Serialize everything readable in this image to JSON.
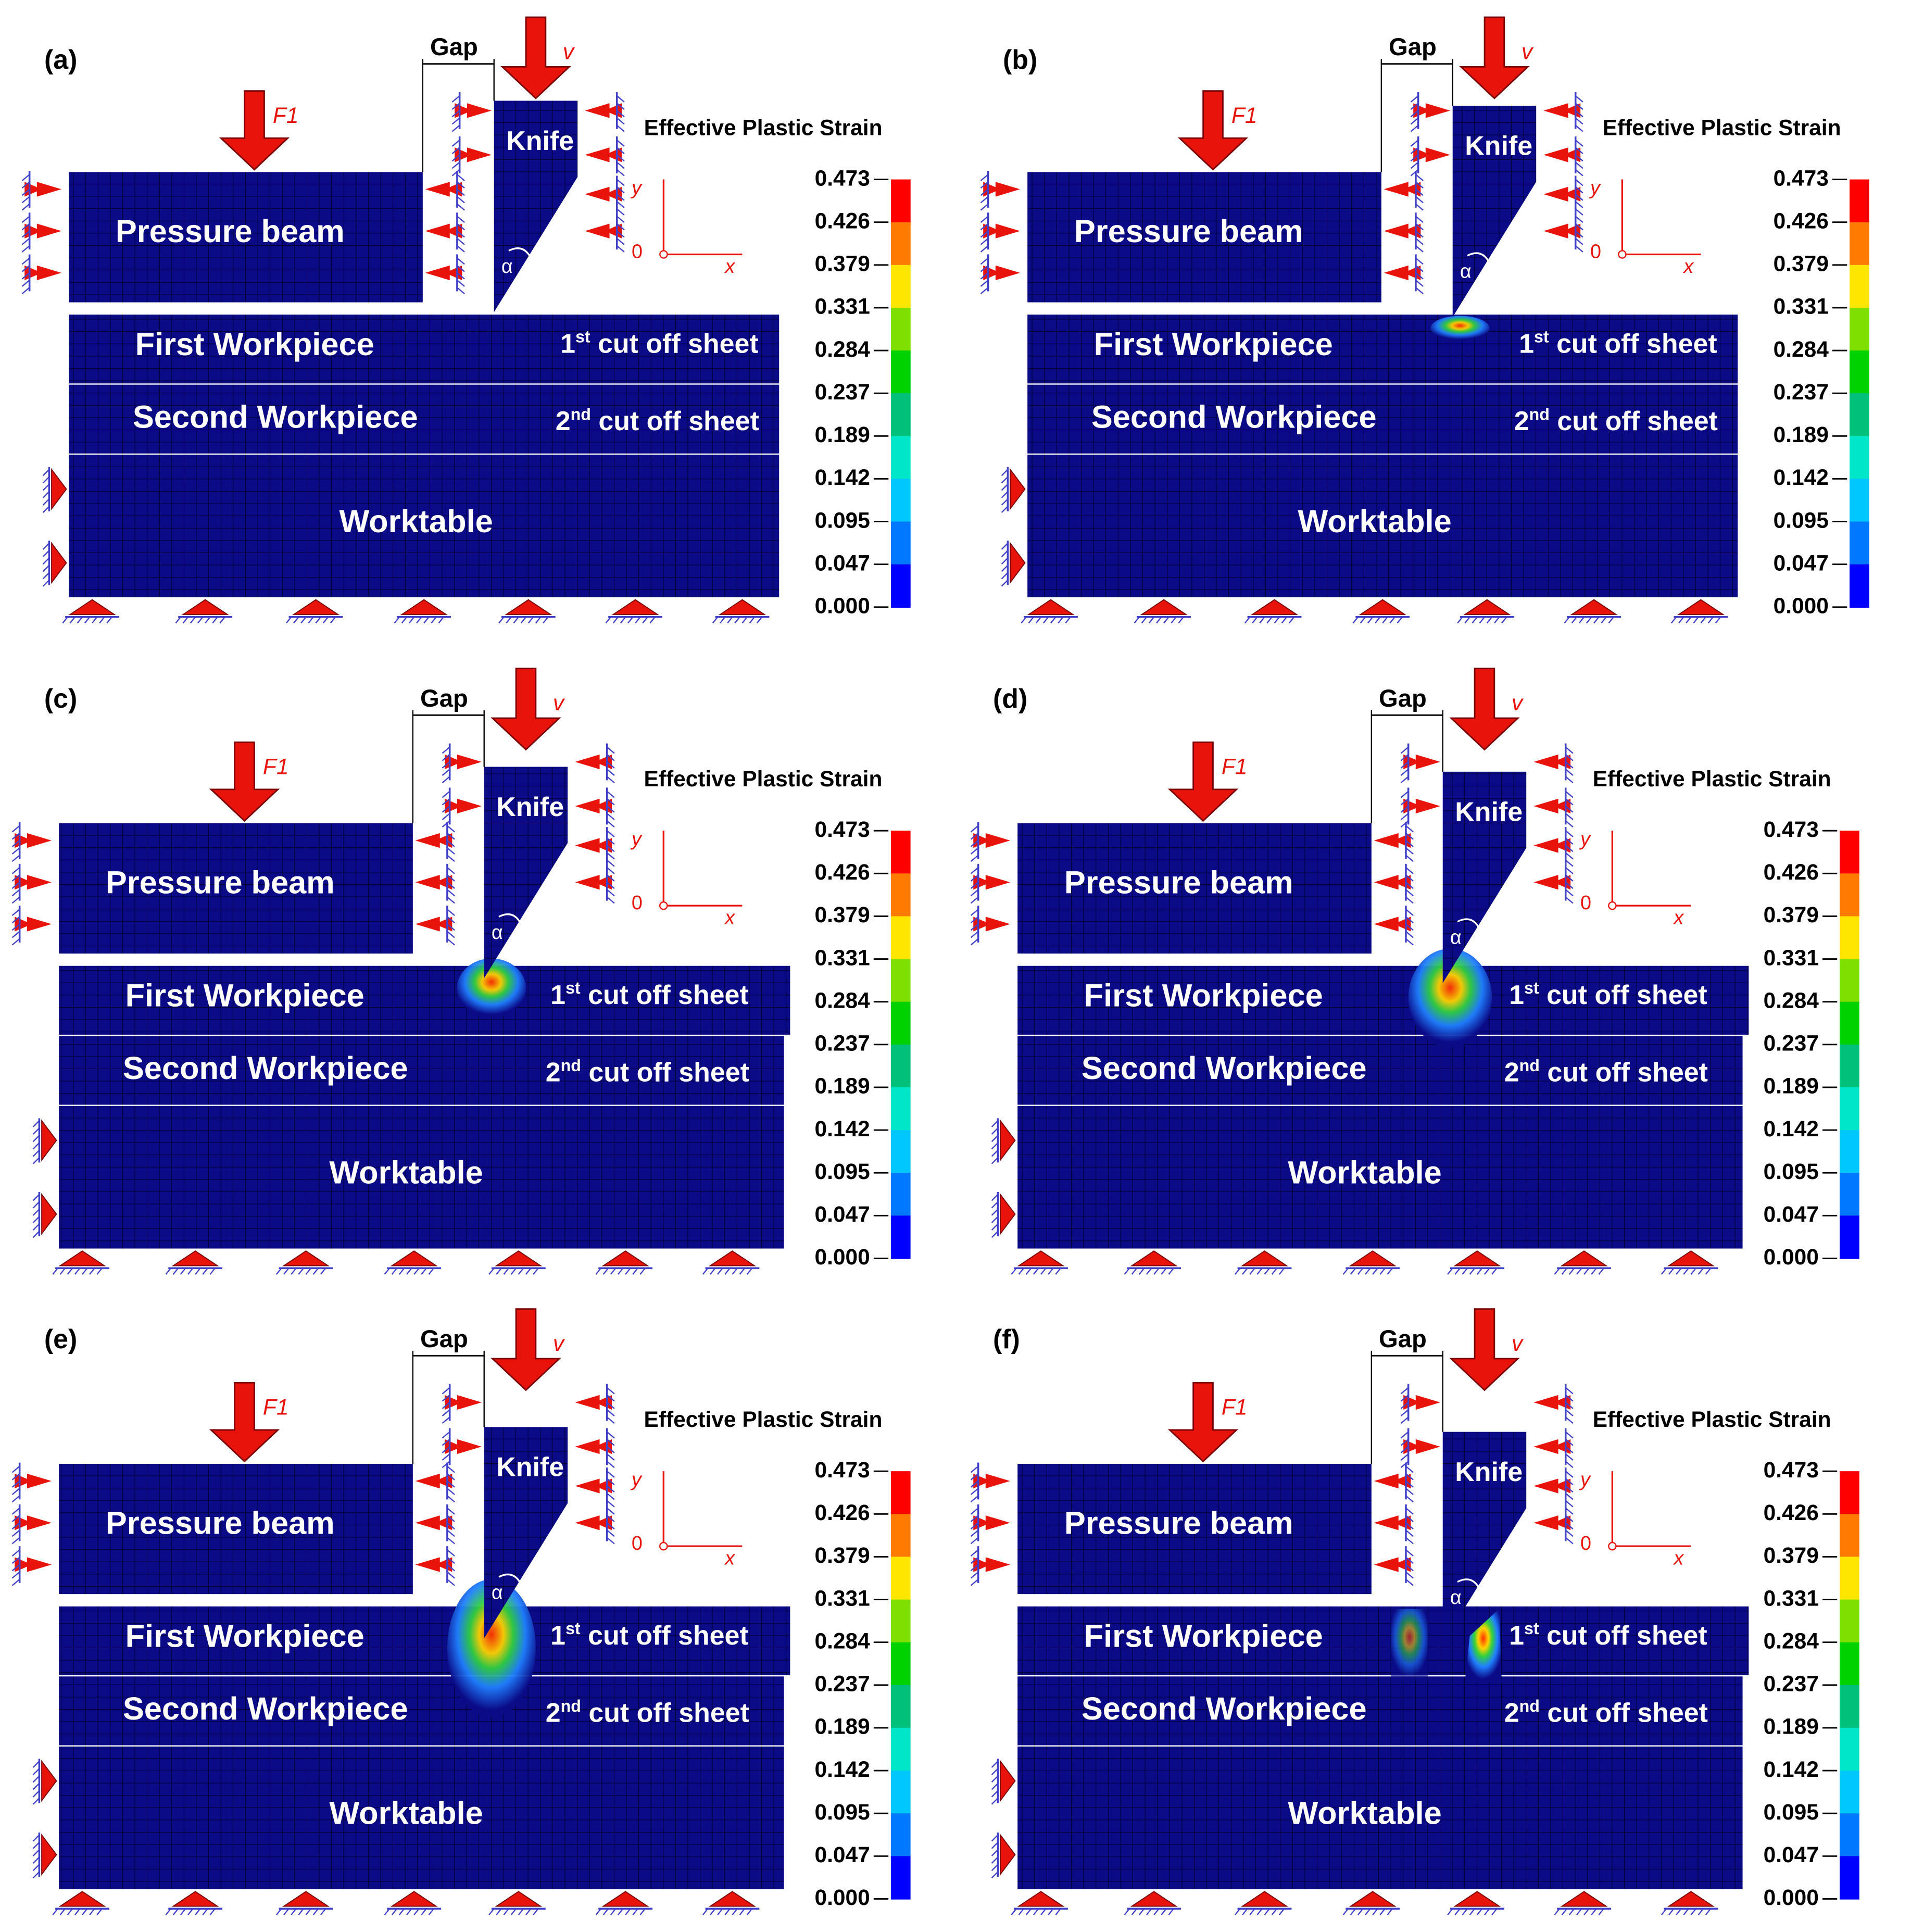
{
  "labels": {
    "pressure_beam": "Pressure beam",
    "knife": "Knife",
    "first_workpiece": "First Workpiece",
    "second_workpiece": "Second Workpiece",
    "worktable": "Worktable",
    "first_cut_off_sheet": "1st cut off sheet",
    "second_cut_off_sheet": "2nd cut off sheet",
    "gap": "Gap",
    "force_symbol": "F1",
    "velocity_symbol": "v",
    "angle_symbol": "α",
    "axis_y": "y",
    "axis_x": "x",
    "axis_origin": "0",
    "colorbar_title": "Effective Plastic Strain"
  },
  "colorbar": {
    "ticks": [
      "0.473",
      "0.426",
      "0.379",
      "0.331",
      "0.284",
      "0.237",
      "0.189",
      "0.142",
      "0.095",
      "0.047",
      "0.000"
    ],
    "colors": [
      "#ff0000",
      "#ff7a00",
      "#ffe600",
      "#7fe000",
      "#00d200",
      "#00c07a",
      "#00e6c8",
      "#00c8ff",
      "#0078ff",
      "#0000ff"
    ]
  },
  "colors": {
    "mesh_fill": "#0b0b88",
    "mesh_line": "#000033",
    "arrow_red": "#e8140c",
    "label_red": "#e8140c",
    "hatch_blue": "#4040c8"
  },
  "panels": [
    {
      "id": "a",
      "label": "(a)",
      "stage": 0
    },
    {
      "id": "b",
      "label": "(b)",
      "stage": 1
    },
    {
      "id": "c",
      "label": "(c)",
      "stage": 2
    },
    {
      "id": "d",
      "label": "(d)",
      "stage": 3
    },
    {
      "id": "e",
      "label": "(e)",
      "stage": 4
    },
    {
      "id": "f",
      "label": "(f)",
      "stage": 5
    }
  ]
}
